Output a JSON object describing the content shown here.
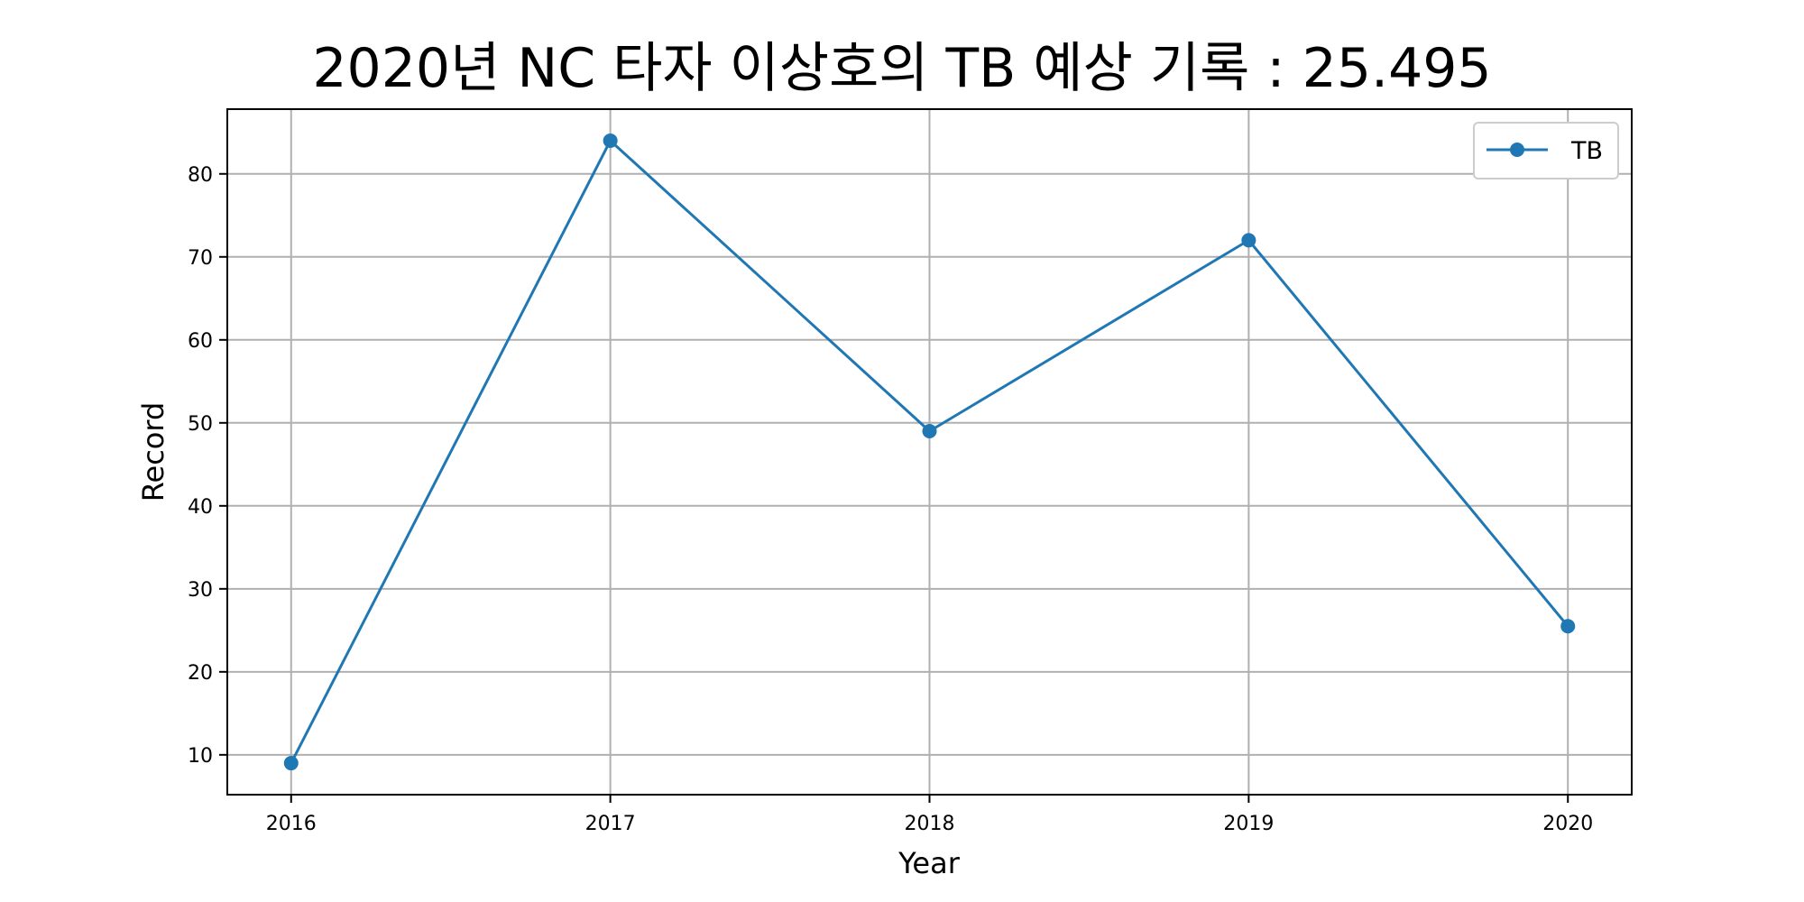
{
  "chart_data": {
    "type": "line",
    "title": "2020년 NC 타자 이상호의 TB 예상 기록 : 25.495",
    "xlabel": "Year",
    "ylabel": "Record",
    "x": [
      2016,
      2017,
      2018,
      2019,
      2020
    ],
    "series": [
      {
        "name": "TB",
        "values": [
          9,
          84,
          49,
          72,
          25.495
        ],
        "color": "#1f77b4",
        "marker": "circle"
      }
    ],
    "xlim": [
      2015.8,
      2020.2
    ],
    "ylim": [
      5.2,
      87.8
    ],
    "x_ticks": [
      "2016",
      "2017",
      "2018",
      "2019",
      "2020"
    ],
    "y_ticks": [
      10,
      20,
      30,
      40,
      50,
      60,
      70,
      80
    ],
    "grid": true,
    "legend_position": "top-right"
  }
}
